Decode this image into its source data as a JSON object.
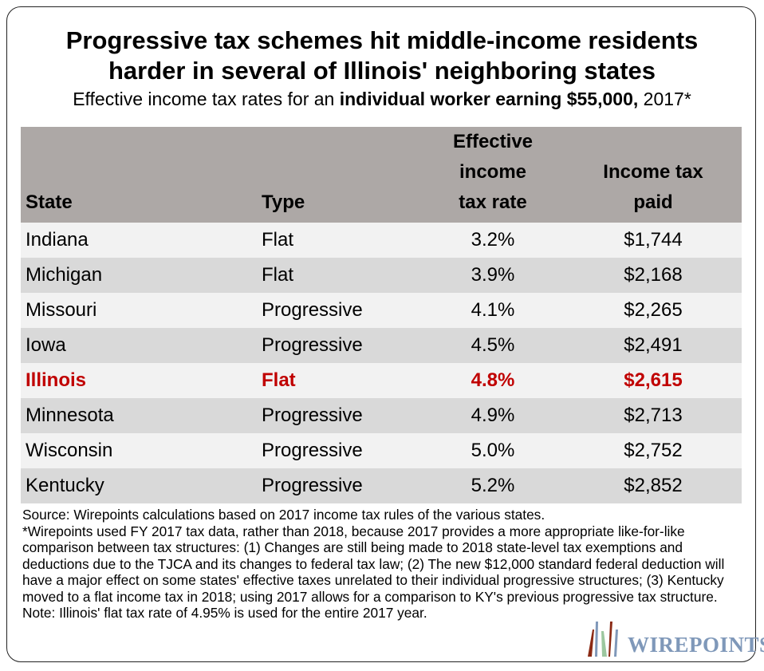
{
  "title_line1": "Progressive tax schemes hit middle-income residents",
  "title_line2": "harder in several of Illinois' neighboring states",
  "subtitle_pre": "Effective income tax rates for an ",
  "subtitle_bold": "individual worker earning $55,000,",
  "subtitle_post": " 2017*",
  "colors": {
    "header_bg": "#ada8a6",
    "row_light": "#f2f2f2",
    "row_dark": "#d9d9d9",
    "highlight": "#c00000"
  },
  "chart_data": {
    "type": "table",
    "columns": [
      "State",
      "Type",
      "Effective income tax rate",
      "Income tax paid"
    ],
    "header": {
      "state": "State",
      "type": "Type",
      "rate_l1": "Effective",
      "rate_l2": "income",
      "rate_l3": "tax rate",
      "paid_l1": "Income tax",
      "paid_l2": "paid"
    },
    "rows": [
      {
        "state": "Indiana",
        "type": "Flat",
        "rate": "3.2%",
        "paid": "$1,744"
      },
      {
        "state": "Michigan",
        "type": "Flat",
        "rate": "3.9%",
        "paid": "$2,168"
      },
      {
        "state": "Missouri",
        "type": "Progressive",
        "rate": "4.1%",
        "paid": "$2,265"
      },
      {
        "state": "Iowa",
        "type": "Progressive",
        "rate": "4.5%",
        "paid": "$2,491"
      },
      {
        "state": "Illinois",
        "type": "Flat",
        "rate": "4.8%",
        "paid": "$2,615",
        "highlighted": true
      },
      {
        "state": "Minnesota",
        "type": "Progressive",
        "rate": "4.9%",
        "paid": "$2,713"
      },
      {
        "state": "Wisconsin",
        "type": "Progressive",
        "rate": "5.0%",
        "paid": "$2,752"
      },
      {
        "state": "Kentucky",
        "type": "Progressive",
        "rate": "5.2%",
        "paid": "$2,852"
      }
    ]
  },
  "notes": [
    "Source: Wirepoints calculations based on 2017 income tax rules of the various states.",
    "*Wirepoints used FY 2017 tax data, rather than 2018, because 2017 provides a more appropriate like-for-like comparison between tax structures: (1) Changes are still being made to 2018 state-level tax exemptions and deductions due to the TJCA and its changes to federal tax law; (2) The new $12,000 standard federal deduction will have a major effect on some states' effective taxes unrelated to their individual progressive structures; (3) Kentucky moved to a flat income tax in 2018; using 2017 allows for a comparison to KY's previous progressive tax structure.",
    "Note: Illinois' flat tax rate of 4.95% is used for the entire 2017 year."
  ],
  "logo": {
    "text": "WIREPOINTS"
  }
}
